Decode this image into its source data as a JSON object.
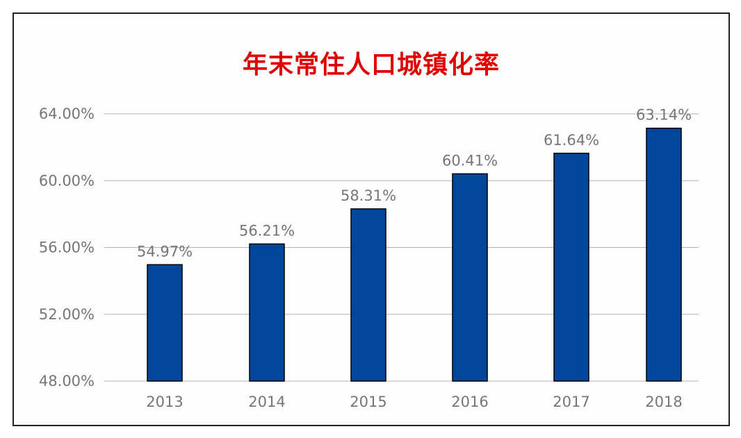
{
  "chart_data": {
    "type": "bar",
    "title": "年末常住人口城镇化率",
    "categories": [
      "2013",
      "2014",
      "2015",
      "2016",
      "2017",
      "2018"
    ],
    "values": [
      54.97,
      56.21,
      58.31,
      60.41,
      61.64,
      63.14
    ],
    "data_labels": [
      "54.97%",
      "56.21%",
      "58.31%",
      "60.41%",
      "61.64%",
      "63.14%"
    ],
    "y_ticks": [
      48,
      52,
      56,
      60,
      64
    ],
    "y_tick_labels": [
      "48.00%",
      "52.00%",
      "56.00%",
      "60.00%",
      "64.00%"
    ],
    "ylim": [
      48,
      64
    ],
    "grid": true,
    "legend": "none",
    "xlabel": "",
    "ylabel": "",
    "colors": {
      "bar": "#00479c",
      "bar_edge": "#000000",
      "title": "#e00000",
      "text": "#767676",
      "grid": "#b4b4b4"
    }
  }
}
